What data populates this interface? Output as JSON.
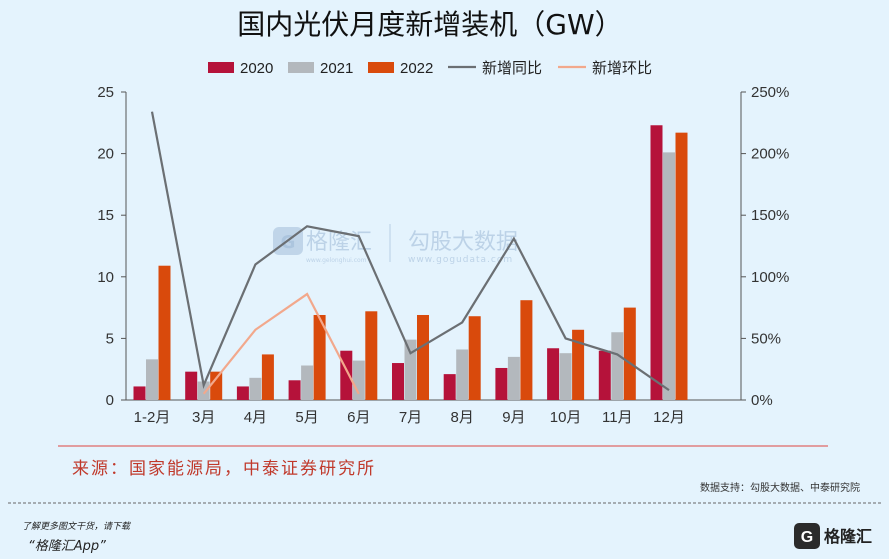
{
  "chart_data": {
    "type": "bar",
    "title": "国内光伏月度新增装机（GW）",
    "categories": [
      "1-2月",
      "3月",
      "4月",
      "5月",
      "6月",
      "7月",
      "8月",
      "9月",
      "10月",
      "11月",
      "12月"
    ],
    "series": [
      {
        "name": "2020",
        "type": "bar",
        "axis": "left",
        "color": "#b5123a",
        "values": [
          1.1,
          2.3,
          1.1,
          1.6,
          4.0,
          3.0,
          2.1,
          2.6,
          4.2,
          4.0,
          22.3
        ]
      },
      {
        "name": "2021",
        "type": "bar",
        "axis": "left",
        "color": "#b3b8bd",
        "values": [
          3.3,
          1.5,
          1.8,
          2.8,
          3.2,
          4.9,
          4.1,
          3.5,
          3.8,
          5.5,
          20.1
        ]
      },
      {
        "name": "2022",
        "type": "bar",
        "axis": "left",
        "color": "#d94a0c",
        "values": [
          10.9,
          2.3,
          3.7,
          6.9,
          7.2,
          6.9,
          6.8,
          8.1,
          5.7,
          7.5,
          21.7
        ]
      },
      {
        "name": "新增同比",
        "type": "line",
        "axis": "right",
        "color": "#6b6f73",
        "values": [
          234,
          12,
          110,
          141,
          133,
          38,
          63,
          131,
          50,
          37,
          8
        ]
      },
      {
        "name": "新增环比",
        "type": "line",
        "axis": "right",
        "color": "#f2a88c",
        "values": [
          null,
          5,
          57,
          86,
          5,
          null,
          null,
          null,
          null,
          null,
          null
        ]
      }
    ],
    "yleft_lim": [
      0,
      25
    ],
    "yleft_ticks": [
      "0",
      "5",
      "10",
      "15",
      "20",
      "25"
    ],
    "yright_lim": [
      0,
      250
    ],
    "yright_ticks": [
      "0%",
      "50%",
      "100%",
      "150%",
      "200%",
      "250%"
    ],
    "legend_position": "top",
    "grid": false
  },
  "source_text": "来源：国家能源局，中泰证券研究所",
  "support_text": "数据支持：勾股大数据、中泰研究院",
  "watermark": {
    "brand1": "格隆汇",
    "brand1_url": "www.gelonghui.com",
    "brand2": "勾股大数据",
    "brand2_url": "www.gogudata.com"
  },
  "footer": {
    "line1": "了解更多图文干货，请下载",
    "line2": "“格隆汇App”",
    "brand": "格隆汇"
  },
  "colors": {
    "background": "#e4f3fd",
    "source_line": "#e08080"
  }
}
